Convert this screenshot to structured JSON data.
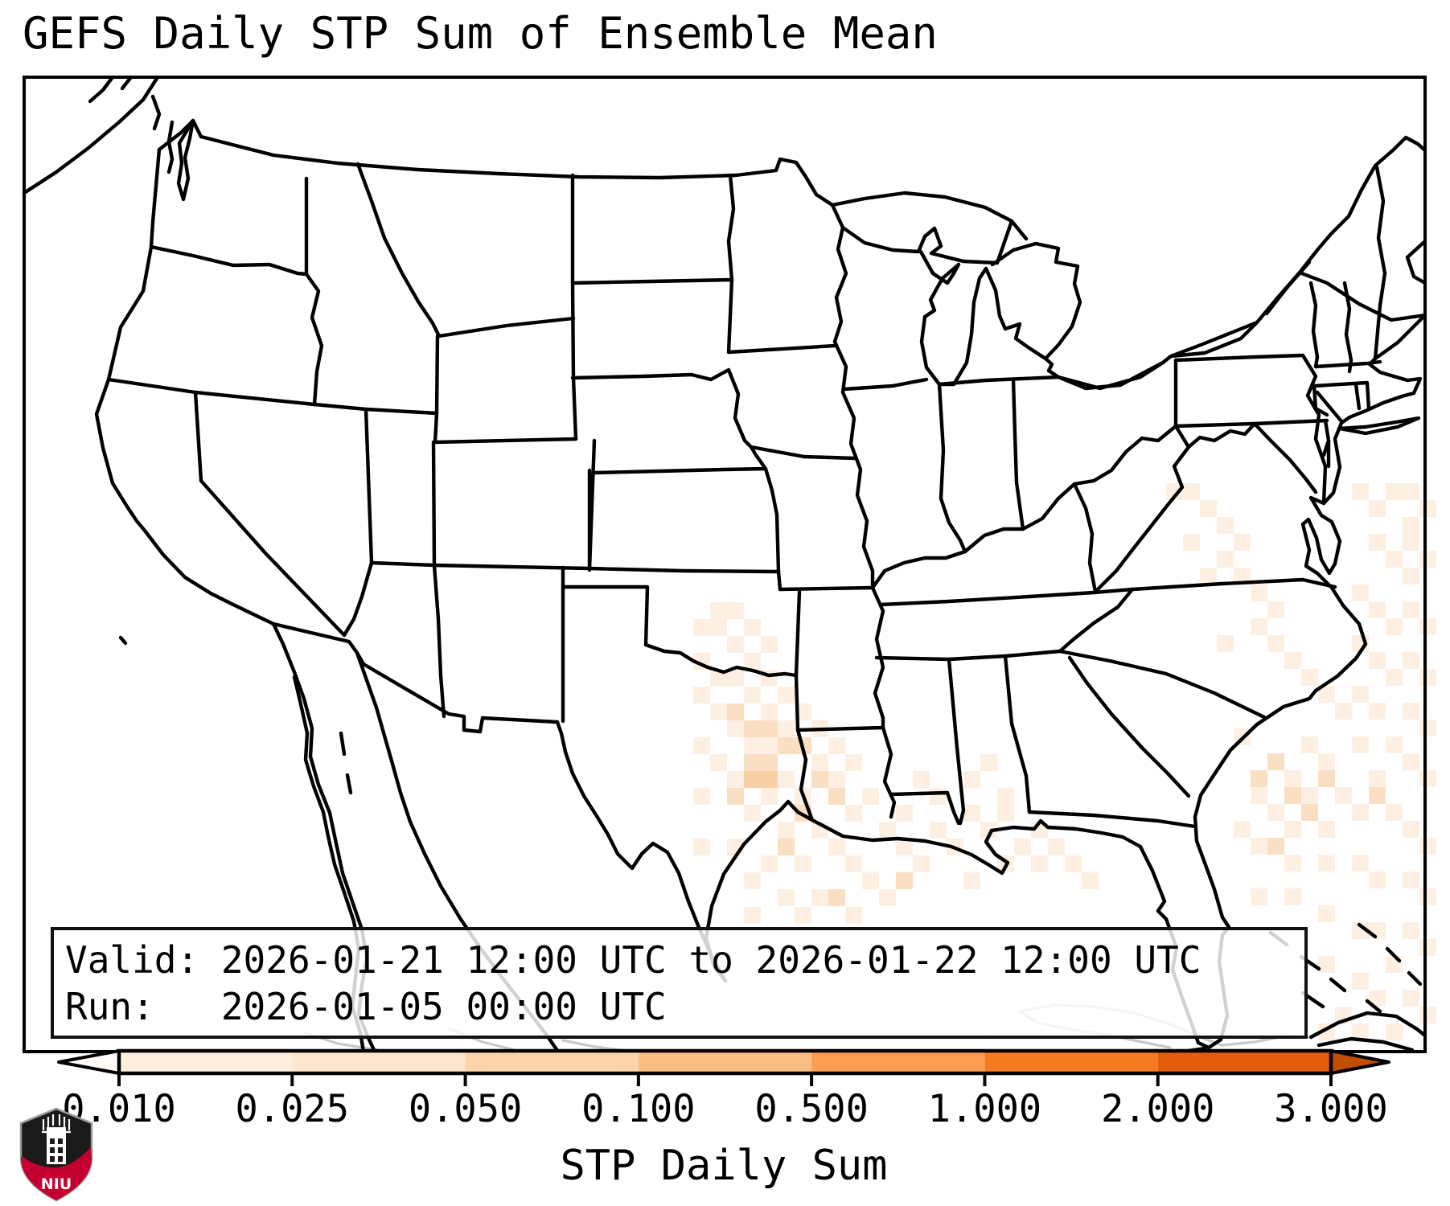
{
  "title": "GEFS Daily STP Sum of Ensemble Mean",
  "info_box": {
    "valid_line": "Valid: 2026-01-21 12:00 UTC to 2026-01-22 12:00 UTC",
    "run_line": "Run:   2026-01-05 00:00 UTC"
  },
  "colorbar": {
    "label": "STP Daily Sum",
    "ticks": [
      "0.010",
      "0.025",
      "0.050",
      "0.100",
      "0.500",
      "1.000",
      "2.000",
      "3.000"
    ],
    "segment_colors": [
      "#fdeedd",
      "#fee5cd",
      "#fdd3aa",
      "#fcbd84",
      "#fd9d52",
      "#f47b22",
      "#e25d0c"
    ],
    "under_color": "#fffaf5",
    "over_color": "#c14d03",
    "outline_color": "#000000"
  },
  "map": {
    "shading_colors": {
      "light": "#fdf0e3",
      "medium": "#fadfc2",
      "dark": "#f7d0a6"
    },
    "land_color": "#ffffff",
    "state_line_color": "#000000",
    "foreign_line_color": "#c9c9c9"
  },
  "logo": {
    "text": "NIU",
    "shield_red": "#c3002f",
    "shield_black": "#1a1a1a"
  }
}
